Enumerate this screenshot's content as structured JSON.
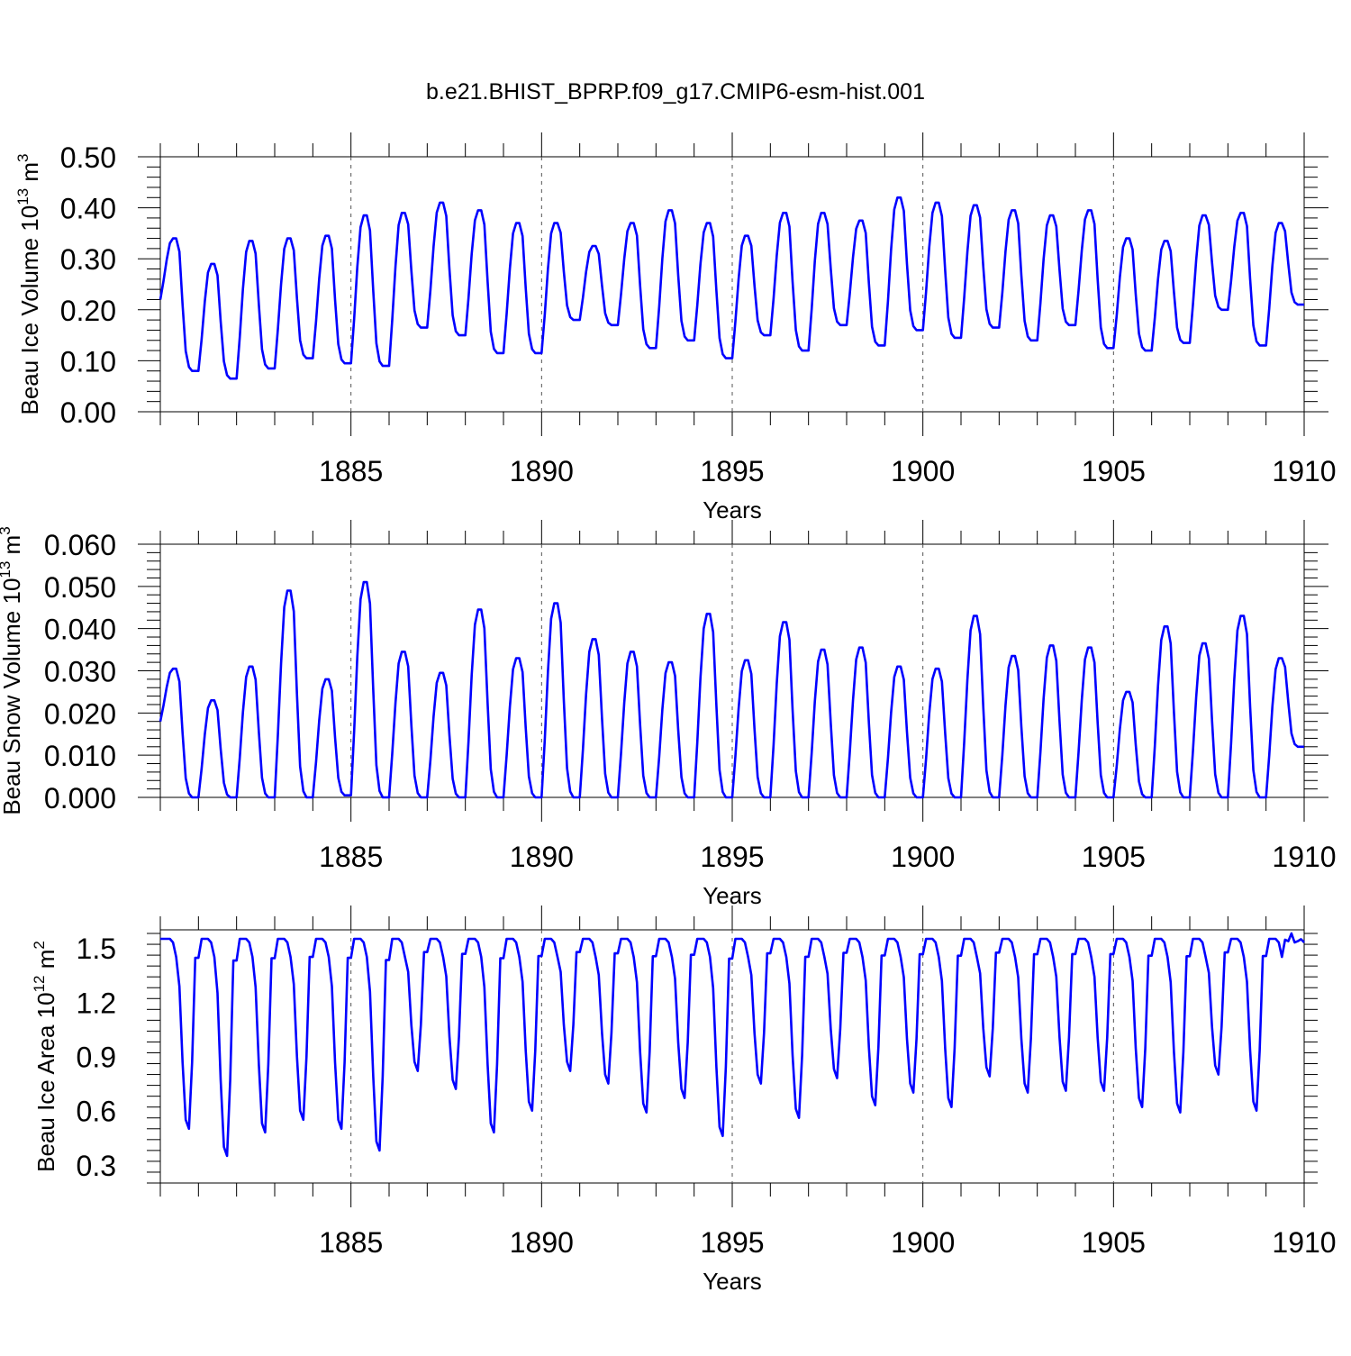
{
  "figure": {
    "title": "b.e21.BHIST_BPRP.f09_g17.CMIP6-esm-hist.001"
  },
  "chart_data": [
    {
      "type": "line",
      "ylabel_main": "Beau Ice Volume 10",
      "ylabel_exp": "13",
      "ylabel_unit": "m",
      "ylabel_unit_exp": "3",
      "xlabel": "Years",
      "xlim": [
        1880,
        1910
      ],
      "ylim": [
        0,
        0.5
      ],
      "yticks": [
        0,
        0.1,
        0.2,
        0.3,
        0.4,
        0.5
      ],
      "ytick_labels": [
        "0.00",
        "0.10",
        "0.20",
        "0.30",
        "0.40",
        "0.50"
      ],
      "xticks": [
        1885,
        1890,
        1895,
        1900,
        1905,
        1910
      ],
      "xtick_labels": [
        "1885",
        "1890",
        "1895",
        "1900",
        "1905",
        "1910"
      ],
      "vgrid_dashed": [
        1885,
        1890,
        1895,
        1900,
        1905
      ],
      "series_color": "#0000ff",
      "cycle": {
        "peaks": [
          0.34,
          0.29,
          0.335,
          0.34,
          0.345,
          0.385,
          0.39,
          0.41,
          0.395,
          0.37,
          0.37,
          0.325,
          0.37,
          0.395,
          0.37,
          0.345,
          0.39,
          0.39,
          0.375,
          0.42,
          0.41,
          0.405,
          0.395,
          0.385,
          0.395,
          0.34,
          0.335,
          0.385,
          0.39,
          0.37
        ],
        "troughs": [
          0.22,
          0.08,
          0.065,
          0.085,
          0.105,
          0.095,
          0.09,
          0.165,
          0.15,
          0.115,
          0.115,
          0.18,
          0.17,
          0.125,
          0.14,
          0.105,
          0.15,
          0.12,
          0.17,
          0.13,
          0.16,
          0.145,
          0.165,
          0.14,
          0.17,
          0.125,
          0.12,
          0.135,
          0.2,
          0.13
        ],
        "last": 0.21
      }
    },
    {
      "type": "line",
      "ylabel_main": "Beau Snow Volume 10",
      "ylabel_exp": "13",
      "ylabel_unit": "m",
      "ylabel_unit_exp": "3",
      "xlabel": "Years",
      "xlim": [
        1880,
        1910
      ],
      "ylim": [
        0,
        0.06
      ],
      "yticks": [
        0,
        0.01,
        0.02,
        0.03,
        0.04,
        0.05,
        0.06
      ],
      "ytick_labels": [
        "0.000",
        "0.010",
        "0.020",
        "0.030",
        "0.040",
        "0.050",
        "0.060"
      ],
      "xticks": [
        1885,
        1890,
        1895,
        1900,
        1905,
        1910
      ],
      "xtick_labels": [
        "1885",
        "1890",
        "1895",
        "1900",
        "1905",
        "1910"
      ],
      "vgrid_dashed": [
        1885,
        1890,
        1895,
        1900,
        1905
      ],
      "series_color": "#0000ff",
      "cycle": {
        "peaks": [
          0.0305,
          0.023,
          0.031,
          0.049,
          0.028,
          0.051,
          0.0345,
          0.0295,
          0.0445,
          0.033,
          0.046,
          0.0375,
          0.0345,
          0.032,
          0.0435,
          0.0325,
          0.0415,
          0.035,
          0.0355,
          0.031,
          0.0305,
          0.043,
          0.0335,
          0.036,
          0.0355,
          0.025,
          0.0405,
          0.0365,
          0.043,
          0.033
        ],
        "troughs": [
          0.018,
          0.0,
          0.0,
          0.0,
          0.0,
          0.0005,
          0.0,
          0.0,
          0.0,
          0.0,
          0.0,
          0.0,
          0.0,
          0.0,
          0.0,
          0.0,
          0.0,
          0.0,
          0.0,
          0.0,
          0.0,
          0.0,
          0.0,
          0.0,
          0.0,
          0.0,
          0.0,
          0.0,
          0.0,
          0.0
        ],
        "last": 0.012
      }
    },
    {
      "type": "line",
      "ylabel_main": "Beau Ice Area 10",
      "ylabel_exp": "12",
      "ylabel_unit": "m",
      "ylabel_unit_exp": "2",
      "xlabel": "Years",
      "xlim": [
        1880,
        1910
      ],
      "ylim": [
        0.2,
        1.6
      ],
      "yticks": [
        0.3,
        0.6,
        0.9,
        1.2,
        1.5
      ],
      "ytick_labels": [
        "0.3",
        "0.6",
        "0.9",
        "1.2",
        "1.5"
      ],
      "xticks": [
        1885,
        1890,
        1895,
        1900,
        1905,
        1910
      ],
      "xtick_labels": [
        "1885",
        "1890",
        "1895",
        "1900",
        "1905",
        "1910"
      ],
      "vgrid_dashed": [
        1885,
        1890,
        1895,
        1900,
        1905
      ],
      "series_color": "#0000ff",
      "cycle": {
        "peaks": [
          1.55,
          1.55,
          1.55,
          1.55,
          1.55,
          1.55,
          1.55,
          1.55,
          1.55,
          1.55,
          1.55,
          1.55,
          1.55,
          1.55,
          1.55,
          1.55,
          1.55,
          1.55,
          1.55,
          1.55,
          1.55,
          1.55,
          1.55,
          1.55,
          1.55,
          1.55,
          1.55,
          1.55,
          1.55,
          1.55
        ],
        "troughs": [
          1.55,
          0.5,
          0.35,
          0.48,
          0.55,
          0.5,
          0.38,
          0.82,
          0.72,
          0.48,
          0.6,
          0.82,
          0.75,
          0.59,
          0.67,
          0.46,
          0.75,
          0.56,
          0.78,
          0.63,
          0.7,
          0.62,
          0.79,
          0.7,
          0.71,
          0.71,
          0.62,
          0.59,
          0.8,
          0.6
        ],
        "last": 1.53
      }
    }
  ]
}
